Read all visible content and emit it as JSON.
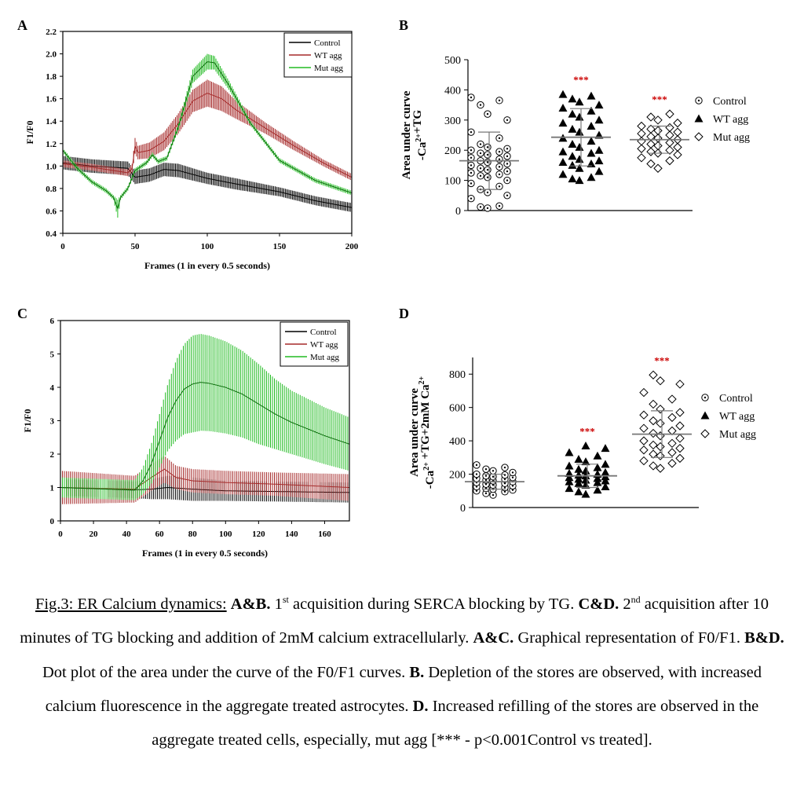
{
  "chart_data": [
    {
      "panel": "A",
      "type": "line",
      "ylabel": "F1/F0",
      "xlabel": "Frames (1 in every 0.5 seconds)",
      "xlim": [
        0,
        200
      ],
      "ylim": [
        0.4,
        2.2
      ],
      "x_ticks": [
        "0",
        "50",
        "100",
        "150",
        "200"
      ],
      "y_ticks": [
        "0.4",
        "0.6",
        "0.8",
        "1.0",
        "1.2",
        "1.4",
        "1.6",
        "1.8",
        "2.0",
        "2.2"
      ],
      "legend": "top-right",
      "series": [
        {
          "name": "Control",
          "color": "#000000",
          "x": [
            0,
            20,
            45,
            50,
            60,
            70,
            80,
            100,
            120,
            150,
            175,
            200
          ],
          "y": [
            1.03,
            1.0,
            0.98,
            0.9,
            0.92,
            0.97,
            0.96,
            0.89,
            0.84,
            0.77,
            0.69,
            0.63
          ],
          "err": [
            0.06,
            0.06,
            0.06,
            0.06,
            0.06,
            0.06,
            0.06,
            0.05,
            0.05,
            0.04,
            0.04,
            0.04
          ]
        },
        {
          "name": "WT agg",
          "color": "#a52a2a",
          "x": [
            0,
            20,
            45,
            48,
            50,
            52,
            60,
            70,
            80,
            90,
            100,
            110,
            120,
            140,
            160,
            180,
            200
          ],
          "y": [
            1.02,
            0.99,
            0.94,
            0.98,
            1.18,
            1.12,
            1.14,
            1.22,
            1.38,
            1.58,
            1.65,
            1.6,
            1.5,
            1.34,
            1.18,
            1.03,
            0.9
          ],
          "err": [
            0.03,
            0.03,
            0.03,
            0.04,
            0.07,
            0.06,
            0.07,
            0.08,
            0.09,
            0.1,
            0.12,
            0.11,
            0.08,
            0.05,
            0.04,
            0.03,
            0.03
          ]
        },
        {
          "name": "Mut agg",
          "color": "#22bb22",
          "x": [
            0,
            10,
            20,
            30,
            35,
            38,
            40,
            45,
            50,
            58,
            62,
            66,
            72,
            80,
            90,
            100,
            105,
            115,
            130,
            150,
            175,
            200
          ],
          "y": [
            1.14,
            0.98,
            0.86,
            0.78,
            0.72,
            0.62,
            0.72,
            0.8,
            0.96,
            1.03,
            1.1,
            1.04,
            1.07,
            1.35,
            1.8,
            1.93,
            1.92,
            1.72,
            1.38,
            1.05,
            0.87,
            0.76
          ],
          "err": [
            0.02,
            0.02,
            0.02,
            0.02,
            0.02,
            0.08,
            0.02,
            0.02,
            0.02,
            0.02,
            0.02,
            0.02,
            0.02,
            0.03,
            0.06,
            0.07,
            0.06,
            0.04,
            0.02,
            0.02,
            0.02,
            0.02
          ]
        }
      ]
    },
    {
      "panel": "B",
      "type": "scatter",
      "ylabel": "Area under curve",
      "ylabel2": "-Ca2+ +TG",
      "ylim": [
        0,
        500
      ],
      "y_ticks": [
        "0",
        "100",
        "200",
        "300",
        "400",
        "500"
      ],
      "legend": "right",
      "significance": [
        "",
        "***",
        "***"
      ],
      "groups": [
        {
          "name": "Control",
          "marker": "circle-dot",
          "mean": 165,
          "sd": 95,
          "values": [
            8,
            12,
            15,
            40,
            50,
            60,
            70,
            80,
            90,
            100,
            110,
            115,
            120,
            125,
            130,
            135,
            140,
            145,
            150,
            155,
            160,
            165,
            170,
            175,
            180,
            185,
            190,
            195,
            200,
            205,
            210,
            220,
            240,
            260,
            300,
            320,
            350,
            365,
            375
          ]
        },
        {
          "name": "WT agg",
          "marker": "triangle",
          "mean": 243,
          "sd": 95,
          "values": [
            100,
            105,
            110,
            120,
            130,
            140,
            150,
            155,
            160,
            165,
            170,
            180,
            190,
            195,
            200,
            210,
            220,
            230,
            240,
            250,
            260,
            270,
            280,
            290,
            300,
            310,
            320,
            330,
            340,
            350,
            360,
            370,
            380,
            385
          ]
        },
        {
          "name": "Mut agg",
          "marker": "diamond",
          "mean": 235,
          "sd": 45,
          "values": [
            140,
            155,
            165,
            175,
            185,
            190,
            195,
            200,
            205,
            210,
            215,
            220,
            225,
            230,
            235,
            240,
            245,
            250,
            255,
            260,
            265,
            270,
            275,
            280,
            290,
            300,
            310,
            320
          ]
        }
      ]
    },
    {
      "panel": "C",
      "type": "line",
      "ylabel": "F1/F0",
      "xlabel": "Frames (1 in every 0.5 seconds)",
      "xlim": [
        0,
        175
      ],
      "ylim": [
        0,
        6
      ],
      "x_ticks": [
        "0",
        "20",
        "40",
        "60",
        "80",
        "100",
        "120",
        "140",
        "160"
      ],
      "y_ticks": [
        "0",
        "1",
        "2",
        "3",
        "4",
        "5",
        "6"
      ],
      "legend": "top-right",
      "series": [
        {
          "name": "Control",
          "color": "#000000",
          "x": [
            0,
            45,
            55,
            65,
            80,
            100,
            130,
            175
          ],
          "y": [
            1.0,
            0.93,
            0.95,
            1.0,
            0.95,
            0.9,
            0.88,
            0.85
          ],
          "err": [
            0.25,
            0.25,
            0.3,
            0.35,
            0.35,
            0.3,
            0.3,
            0.3
          ]
        },
        {
          "name": "WT agg",
          "color": "#a52a2a",
          "x": [
            0,
            45,
            55,
            63,
            70,
            80,
            100,
            130,
            175
          ],
          "y": [
            1.0,
            0.95,
            1.3,
            1.55,
            1.3,
            1.2,
            1.15,
            1.1,
            1.0
          ],
          "err": [
            0.5,
            0.4,
            0.4,
            0.4,
            0.35,
            0.35,
            0.35,
            0.35,
            0.4
          ]
        },
        {
          "name": "Mut agg",
          "color": "#22bb22",
          "x": [
            0,
            45,
            50,
            55,
            60,
            65,
            70,
            75,
            80,
            85,
            90,
            100,
            110,
            120,
            130,
            140,
            150,
            160,
            175
          ],
          "y": [
            1.0,
            0.92,
            1.2,
            1.7,
            2.4,
            3.1,
            3.6,
            3.95,
            4.1,
            4.15,
            4.12,
            4.0,
            3.8,
            3.5,
            3.2,
            2.95,
            2.75,
            2.55,
            2.3
          ],
          "err": [
            0.3,
            0.3,
            0.4,
            0.6,
            0.8,
            1.0,
            1.2,
            1.35,
            1.45,
            1.45,
            1.43,
            1.38,
            1.3,
            1.2,
            1.05,
            0.95,
            0.9,
            0.85,
            0.8
          ]
        }
      ]
    },
    {
      "panel": "D",
      "type": "scatter",
      "ylabel": "Area under curve",
      "ylabel2": "-Ca2+ +TG+2mM Ca2+",
      "ylim": [
        0,
        900
      ],
      "y_ticks": [
        "0",
        "200",
        "400",
        "600",
        "800"
      ],
      "legend": "right",
      "significance": [
        "",
        "***",
        "***"
      ],
      "groups": [
        {
          "name": "Control",
          "marker": "circle-dot",
          "mean": 155,
          "sd": 45,
          "values": [
            75,
            85,
            95,
            100,
            105,
            110,
            115,
            120,
            125,
            130,
            135,
            140,
            145,
            150,
            155,
            160,
            165,
            170,
            175,
            180,
            185,
            190,
            195,
            200,
            210,
            220,
            230,
            240,
            255
          ]
        },
        {
          "name": "WT agg",
          "marker": "triangle",
          "mean": 190,
          "sd": 70,
          "values": [
            80,
            95,
            105,
            115,
            125,
            135,
            145,
            150,
            155,
            160,
            165,
            170,
            175,
            180,
            185,
            190,
            195,
            200,
            205,
            210,
            220,
            230,
            240,
            250,
            260,
            275,
            290,
            310,
            330,
            355,
            370
          ]
        },
        {
          "name": "Mut agg",
          "marker": "diamond",
          "mean": 440,
          "sd": 140,
          "values": [
            235,
            250,
            265,
            280,
            295,
            310,
            320,
            330,
            345,
            355,
            365,
            375,
            385,
            400,
            415,
            430,
            445,
            460,
            475,
            490,
            505,
            520,
            540,
            555,
            570,
            590,
            620,
            650,
            690,
            740,
            760,
            795
          ]
        }
      ]
    }
  ],
  "panel_letters": [
    "A",
    "B",
    "C",
    "D"
  ],
  "caption": {
    "fig_label": "Fig.3: ER Calcium dynamics:",
    "ab_head": "A&B.",
    "t1_pre": "1",
    "t1_sup": "st",
    "t1_post": "acquisition during SERCA blocking by TG.",
    "cd_head": "C&D.",
    "t2_pre": "2",
    "t2_sup": "nd",
    "t2_post": "acquisition after 10 minutes of TG blocking and addition of 2mM calcium extracellularly.",
    "ac_head": "A&C.",
    "ac_text": "Graphical representation of F0/F1.",
    "bd_head": "B&D.",
    "bd_text": "Dot plot of the area under the curve of the F0/F1 curves.",
    "b_head": "B.",
    "b_text": "Depletion of the stores are observed, with increased calcium fluorescence in the aggregate treated astrocytes.",
    "d_head": "D.",
    "d_text": "Increased refilling  of the stores are observed in the aggregate treated cells, especially, mut agg [*** - p<0.001Control vs treated]."
  }
}
